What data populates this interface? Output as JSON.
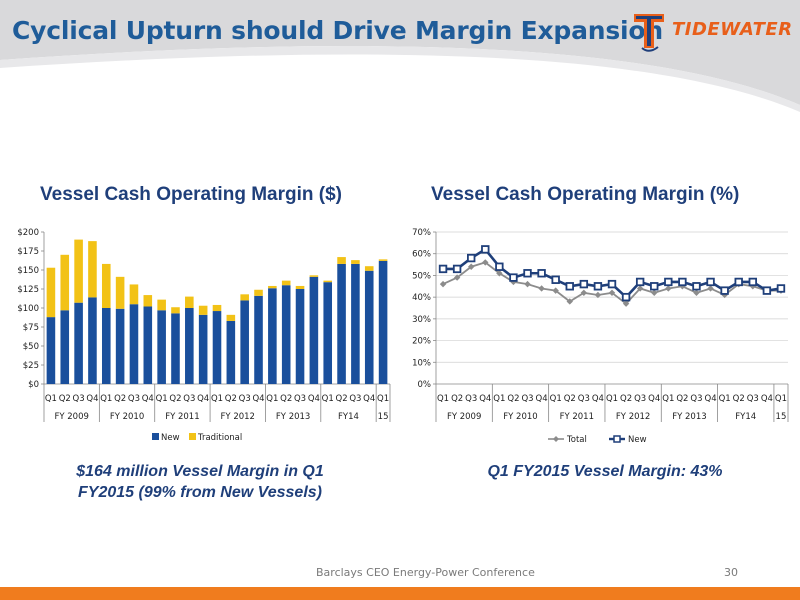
{
  "header": {
    "title": "Cyclical Upturn should Drive Margin Expansion",
    "logo_text": "TIDEWATER"
  },
  "colors": {
    "title_blue": "#1f5c99",
    "new_bar": "#1a4f9c",
    "traditional_bar": "#f2c216",
    "total_line": "#8c8c8c",
    "new_line": "#1f3f7a",
    "accent_orange": "#f07c1e"
  },
  "left_caption": [
    "$164 million Vessel Margin in Q1",
    "FY2015 (99% from New Vessels)"
  ],
  "right_caption": "Q1 FY2015 Vessel Margin: 43%",
  "footer": {
    "text": "Barclays CEO Energy-Power Conference",
    "page": "30"
  },
  "chart_data": [
    {
      "type": "bar",
      "stacked": true,
      "title": "Vessel Cash Operating Margin ($)",
      "categories": [
        "Q1",
        "Q2",
        "Q3",
        "Q4",
        "Q1",
        "Q2",
        "Q3",
        "Q4",
        "Q1",
        "Q2",
        "Q3",
        "Q4",
        "Q1",
        "Q2",
        "Q3",
        "Q4",
        "Q1",
        "Q2",
        "Q3",
        "Q4",
        "Q1",
        "Q2",
        "Q3",
        "Q4",
        "Q1"
      ],
      "groups": [
        "FY 2009",
        "FY 2010",
        "FY 2011",
        "FY 2012",
        "FY 2013",
        "FY14",
        "15"
      ],
      "series": [
        {
          "name": "New",
          "values": [
            88,
            97,
            107,
            114,
            100,
            99,
            105,
            102,
            97,
            93,
            100,
            91,
            96,
            83,
            110,
            116,
            126,
            130,
            125,
            141,
            134,
            158,
            158,
            149,
            162
          ]
        },
        {
          "name": "Traditional",
          "values": [
            65,
            73,
            83,
            74,
            58,
            42,
            26,
            15,
            14,
            8,
            15,
            12,
            8,
            8,
            8,
            8,
            3,
            6,
            4,
            2,
            2,
            9,
            5,
            6,
            2
          ]
        }
      ],
      "ylim": [
        0,
        200
      ],
      "yticks": [
        "$0",
        "$25",
        "$50",
        "$75",
        "$100",
        "$125",
        "$150",
        "$175",
        "$200"
      ],
      "legend": "bottom"
    },
    {
      "type": "line",
      "title": "Vessel Cash Operating Margin (%)",
      "categories": [
        "Q1",
        "Q2",
        "Q3",
        "Q4",
        "Q1",
        "Q2",
        "Q3",
        "Q4",
        "Q1",
        "Q2",
        "Q3",
        "Q4",
        "Q1",
        "Q2",
        "Q3",
        "Q4",
        "Q1",
        "Q2",
        "Q3",
        "Q4",
        "Q1",
        "Q2",
        "Q3",
        "Q4",
        "Q1"
      ],
      "groups": [
        "FY 2009",
        "FY 2010",
        "FY 2011",
        "FY 2012",
        "FY 2013",
        "FY14",
        "15"
      ],
      "series": [
        {
          "name": "Total",
          "values": [
            46,
            49,
            54,
            56,
            51,
            47,
            46,
            44,
            43,
            38,
            42,
            41,
            42,
            37,
            44,
            42,
            44,
            45,
            42,
            44,
            41,
            46,
            45,
            43,
            43
          ]
        },
        {
          "name": "New",
          "values": [
            53,
            53,
            58,
            62,
            54,
            49,
            51,
            51,
            48,
            45,
            46,
            45,
            46,
            40,
            47,
            45,
            47,
            47,
            45,
            47,
            43,
            47,
            47,
            43,
            44
          ]
        }
      ],
      "ylim": [
        0,
        70
      ],
      "yticks": [
        "0%",
        "10%",
        "20%",
        "30%",
        "40%",
        "50%",
        "60%",
        "70%"
      ],
      "legend": "bottom"
    }
  ]
}
